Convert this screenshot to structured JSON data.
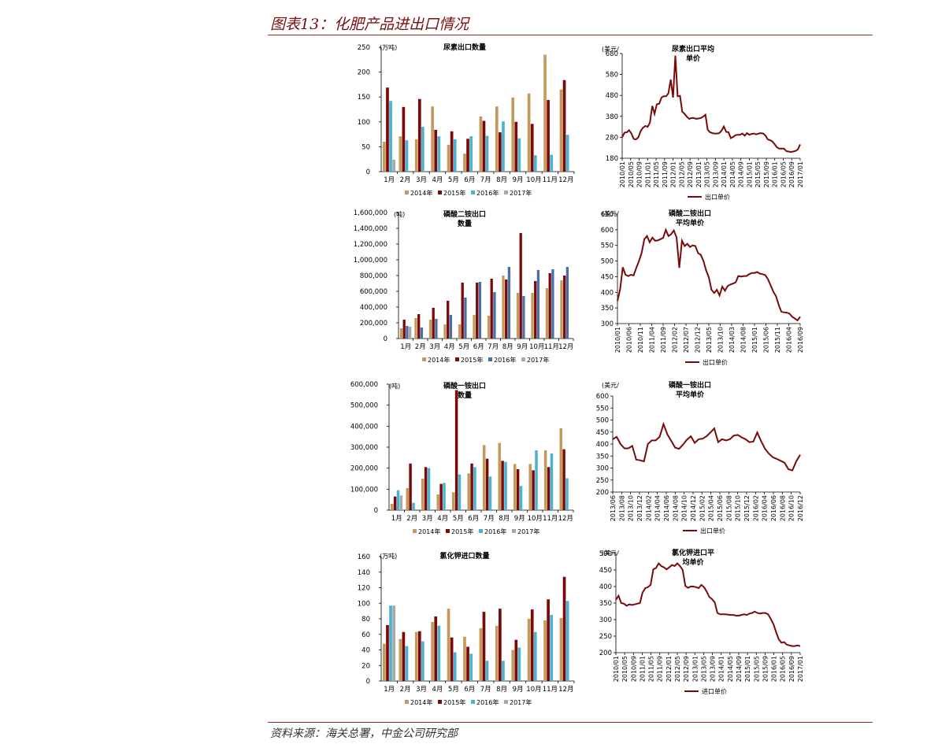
{
  "page": {
    "title": "图表13：化肥产品进出口情况",
    "source": "资料来源：海关总署，中金公司研究部"
  },
  "chart_data": [
    {
      "id": "urea-qty",
      "type": "bar",
      "title": "尿素出口数量",
      "unit_label": "(万吨)",
      "ylim": [
        0,
        250
      ],
      "yticks": [
        0,
        50,
        100,
        150,
        200,
        250
      ],
      "ytick_labels": [
        "0",
        "50",
        "100",
        "150",
        "200",
        "250"
      ],
      "categories": [
        "1月",
        "2月",
        "3月",
        "4月",
        "5月",
        "6月",
        "7月",
        "8月",
        "9月",
        "10月",
        "11月",
        "12月"
      ],
      "series": [
        {
          "name": "2014年",
          "color": "#c49a5c",
          "values": [
            60,
            71,
            65,
            131,
            54,
            36,
            111,
            131,
            149,
            157,
            235,
            165
          ]
        },
        {
          "name": "2015年",
          "color": "#7a0a0a",
          "values": [
            169,
            130,
            146,
            84,
            81,
            66,
            102,
            79,
            100,
            96,
            144,
            184
          ]
        },
        {
          "name": "2016年",
          "color": "#4bb3d1",
          "values": [
            142,
            63,
            90,
            71,
            65,
            71,
            72,
            101,
            67,
            33,
            34,
            74
          ]
        },
        {
          "name": "2017年",
          "color": "#a8a8a8",
          "values": [
            24,
            null,
            null,
            null,
            null,
            null,
            null,
            null,
            null,
            null,
            null,
            null
          ]
        }
      ]
    },
    {
      "id": "dap-qty",
      "type": "bar",
      "title": "磷酸二铵出口数量",
      "unit_label": "(吨)",
      "ylim": [
        0,
        1600000
      ],
      "yticks": [
        0,
        200000,
        400000,
        600000,
        800000,
        1000000,
        1200000,
        1400000,
        1600000
      ],
      "ytick_labels": [
        "0",
        "200,000",
        "400,000",
        "600,000",
        "800,000",
        "1,000,000",
        "1,200,000",
        "1,400,000",
        "1,600,000"
      ],
      "categories": [
        "1月",
        "2月",
        "3月",
        "4月",
        "5月",
        "6月",
        "7月",
        "8月",
        "9月",
        "10月",
        "11月",
        "12月"
      ],
      "series": [
        {
          "name": "2014年",
          "color": "#c49a5c",
          "values": [
            130000,
            260000,
            240000,
            180000,
            180000,
            300000,
            290000,
            800000,
            580000,
            580000,
            640000,
            740000
          ]
        },
        {
          "name": "2015年",
          "color": "#7a0a0a",
          "values": [
            240000,
            310000,
            390000,
            480000,
            710000,
            710000,
            760000,
            750000,
            1340000,
            730000,
            830000,
            800000
          ]
        },
        {
          "name": "2016年",
          "color": "#4a6fa8",
          "values": [
            160000,
            140000,
            250000,
            300000,
            520000,
            720000,
            590000,
            910000,
            540000,
            870000,
            880000,
            910000
          ]
        },
        {
          "name": "2017年",
          "color": "#a8a8a8",
          "values": [
            150000,
            null,
            null,
            null,
            null,
            null,
            null,
            null,
            null,
            null,
            null,
            null
          ]
        }
      ]
    },
    {
      "id": "map-qty",
      "type": "bar",
      "title": "磷酸一铵出口数量",
      "unit_label": "(吨)",
      "ylim": [
        0,
        600000
      ],
      "yticks": [
        0,
        100000,
        200000,
        300000,
        400000,
        500000,
        600000
      ],
      "ytick_labels": [
        "0",
        "100,000",
        "200,000",
        "300,000",
        "400,000",
        "500,000",
        "600,000"
      ],
      "categories": [
        "1月",
        "2月",
        "3月",
        "4月",
        "5月",
        "6月",
        "7月",
        "8月",
        "9月",
        "10月",
        "11月",
        "12月"
      ],
      "series": [
        {
          "name": "2014年",
          "color": "#c49a5c",
          "values": [
            30000,
            105000,
            150000,
            75000,
            85000,
            175000,
            310000,
            320000,
            220000,
            220000,
            285000,
            390000
          ]
        },
        {
          "name": "2015年",
          "color": "#7a0a0a",
          "values": [
            65000,
            222000,
            205000,
            125000,
            572000,
            222000,
            245000,
            235000,
            195000,
            190000,
            205000,
            290000
          ]
        },
        {
          "name": "2016年",
          "color": "#4bb3d1",
          "values": [
            95000,
            35000,
            200000,
            130000,
            170000,
            205000,
            160000,
            230000,
            115000,
            285000,
            270000,
            152000
          ]
        },
        {
          "name": "2017年",
          "color": "#a8a8a8",
          "values": [
            70000,
            null,
            null,
            null,
            null,
            null,
            null,
            null,
            null,
            null,
            null,
            null
          ]
        }
      ]
    },
    {
      "id": "kcl-qty",
      "type": "bar",
      "title": "氯化钾进口数量",
      "unit_label": "(万吨)",
      "ylim": [
        0,
        160
      ],
      "yticks": [
        0,
        20,
        40,
        60,
        80,
        100,
        120,
        140,
        160
      ],
      "ytick_labels": [
        "0",
        "20",
        "40",
        "60",
        "80",
        "100",
        "120",
        "140",
        "160"
      ],
      "categories": [
        "1月",
        "2月",
        "3月",
        "4月",
        "5月",
        "6月",
        "7月",
        "8月",
        "9月",
        "10月",
        "11月",
        "12月"
      ],
      "series": [
        {
          "name": "2014年",
          "color": "#c49a5c",
          "values": [
            48,
            54,
            63,
            76,
            93,
            57,
            68,
            71,
            40,
            80,
            78,
            81
          ]
        },
        {
          "name": "2015年",
          "color": "#7a0a0a",
          "values": [
            72,
            63,
            64,
            83,
            56,
            44,
            89,
            93,
            53,
            92,
            105,
            134
          ]
        },
        {
          "name": "2016年",
          "color": "#4bb3d1",
          "values": [
            97,
            45,
            51,
            71,
            37,
            35,
            26,
            26,
            43,
            63,
            85,
            103
          ]
        },
        {
          "name": "2017年",
          "color": "#a8a8a8",
          "values": [
            97,
            null,
            null,
            null,
            null,
            null,
            null,
            null,
            null,
            null,
            null,
            null
          ]
        }
      ]
    },
    {
      "id": "urea-price",
      "type": "line",
      "title": "尿素出口平均单价",
      "unit_label": "(美元/",
      "ylim": [
        180,
        680
      ],
      "yticks": [
        180,
        280,
        380,
        480,
        580,
        680
      ],
      "ytick_labels": [
        "180",
        "280",
        "380",
        "480",
        "580",
        "680"
      ],
      "xlabels": [
        "2010/01",
        "2010/05",
        "2010/09",
        "2011/01",
        "2011/05",
        "2011/09",
        "2012/01",
        "2012/05",
        "2012/09",
        "2013/01",
        "2013/05",
        "2013/09",
        "2014/01",
        "2014/05",
        "2014/09",
        "2015/01",
        "2015/05",
        "2015/09",
        "2016/01",
        "2016/05",
        "2016/09",
        "2017/01"
      ],
      "series": [
        {
          "name": "出口单价",
          "color": "#7a0a0a",
          "values": [
            280,
            302,
            304,
            314,
            298,
            272,
            270,
            280,
            310,
            326,
            334,
            330,
            350,
            430,
            392,
            438,
            440,
            470,
            476,
            476,
            490,
            556,
            470,
            670,
            476,
            478,
            402,
            392,
            378,
            368,
            372,
            372,
            368,
            370,
            372,
            378,
            388,
            316,
            304,
            300,
            298,
            298,
            300,
            312,
            332,
            306,
            304,
            276,
            282,
            290,
            292,
            292,
            298,
            288,
            300,
            292,
            296,
            298,
            294,
            298,
            300,
            298,
            288,
            270,
            266,
            260,
            246,
            232,
            226,
            226,
            226,
            214,
            212,
            210,
            212,
            215,
            222,
            246
          ]
        }
      ]
    },
    {
      "id": "dap-price",
      "type": "line",
      "title": "磷酸二铵出口平均单价",
      "unit_label": "(美元/",
      "ylim": [
        300,
        650
      ],
      "yticks": [
        300,
        350,
        400,
        450,
        500,
        550,
        600,
        650
      ],
      "ytick_labels": [
        "300",
        "350",
        "400",
        "450",
        "500",
        "550",
        "600",
        "650"
      ],
      "xlabels": [
        "2010/01",
        "2010/06",
        "2010/11",
        "2011/04",
        "2011/09",
        "2012/02",
        "2012/07",
        "2012/12",
        "2013/05",
        "2013/10",
        "2014/03",
        "2014/08",
        "2015/01",
        "2015/06",
        "2015/11",
        "2016/04",
        "2016/09"
      ],
      "series": [
        {
          "name": "出口单价",
          "color": "#7a0a0a",
          "values": [
            372,
            410,
            480,
            456,
            452,
            456,
            454,
            478,
            500,
            526,
            570,
            580,
            560,
            575,
            565,
            566,
            570,
            574,
            600,
            580,
            586,
            598,
            575,
            478,
            565,
            548,
            555,
            545,
            550,
            548,
            525,
            520,
            500,
            470,
            448,
            408,
            398,
            408,
            390,
            418,
            405,
            420,
            425,
            428,
            432,
            452,
            450,
            452,
            452,
            458,
            462,
            462,
            465,
            460,
            458,
            455,
            442,
            422,
            402,
            388,
            360,
            338,
            336,
            335,
            332,
            322,
            316,
            310,
            322
          ]
        }
      ]
    },
    {
      "id": "map-price",
      "type": "line",
      "title": "磷酸一铵出口平均单价",
      "unit_label": "(美元/",
      "ylim": [
        200,
        600
      ],
      "yticks": [
        200,
        250,
        300,
        350,
        400,
        450,
        500,
        550,
        600
      ],
      "ytick_labels": [
        "200",
        "250",
        "300",
        "350",
        "400",
        "450",
        "500",
        "550",
        "600"
      ],
      "xlabels": [
        "2013/06",
        "2013/08",
        "2013/10",
        "2013/12",
        "2014/02",
        "2014/04",
        "2014/06",
        "2014/08",
        "2014/10",
        "2014/12",
        "2015/02",
        "2015/04",
        "2015/06",
        "2015/08",
        "2015/10",
        "2015/12",
        "2016/02",
        "2016/04",
        "2016/06",
        "2016/08",
        "2016/10",
        "2016/12"
      ],
      "series": [
        {
          "name": "出口单价",
          "color": "#7a0a0a",
          "values": [
            420,
            430,
            400,
            382,
            382,
            392,
            335,
            332,
            328,
            400,
            415,
            415,
            430,
            483,
            440,
            412,
            385,
            380,
            398,
            418,
            432,
            405,
            420,
            422,
            432,
            448,
            465,
            408,
            420,
            415,
            420,
            435,
            438,
            428,
            420,
            408,
            410,
            448,
            412,
            380,
            360,
            345,
            338,
            330,
            322,
            295,
            290,
            328,
            355
          ]
        }
      ]
    },
    {
      "id": "kcl-price",
      "type": "line",
      "title": "氯化钾进口平均单价",
      "unit_label": "(美元/",
      "ylim": [
        200,
        500
      ],
      "yticks": [
        200,
        250,
        300,
        350,
        400,
        450,
        500
      ],
      "ytick_labels": [
        "200",
        "250",
        "300",
        "350",
        "400",
        "450",
        "500"
      ],
      "xlabels": [
        "2010/01",
        "2010/05",
        "2010/09",
        "2011/01",
        "2011/05",
        "2011/09",
        "2012/01",
        "2012/05",
        "2012/09",
        "2013/01",
        "2013/05",
        "2013/09",
        "2014/01",
        "2014/05",
        "2014/09",
        "2015/01",
        "2015/05",
        "2015/09",
        "2016/01",
        "2016/05",
        "2016/09",
        "2017/01"
      ],
      "series": [
        {
          "name": "进口单价",
          "color": "#7a0a0a",
          "values": [
            360,
            372,
            350,
            348,
            342,
            346,
            344,
            346,
            348,
            350,
            382,
            395,
            398,
            405,
            452,
            456,
            470,
            462,
            458,
            452,
            458,
            465,
            462,
            470,
            462,
            450,
            402,
            396,
            400,
            400,
            398,
            395,
            405,
            398,
            385,
            368,
            362,
            352,
            320,
            316,
            316,
            316,
            315,
            314,
            314,
            312,
            312,
            314,
            316,
            314,
            318,
            320,
            324,
            320,
            318,
            320,
            320,
            316,
            302,
            286,
            262,
            240,
            230,
            232,
            224,
            222,
            220,
            220,
            222,
            220
          ]
        }
      ]
    }
  ]
}
